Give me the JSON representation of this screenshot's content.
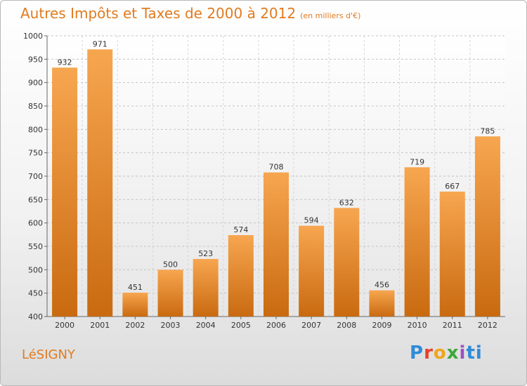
{
  "header": {
    "title": "Autres Impôts et Taxes de 2000 à 2012",
    "subtitle": "(en milliers d'€)"
  },
  "footer": {
    "city": "LéSIGNY",
    "logo": [
      "P",
      "r",
      "o",
      "x",
      "i",
      "ti"
    ]
  },
  "colors": {
    "bar_top": "#f7a650",
    "bar_bottom": "#c96a10",
    "accent": "#e07b1f"
  },
  "chart_data": {
    "type": "bar",
    "title": "Autres Impôts et Taxes de 2000 à 2012",
    "subtitle": "(en milliers d'€)",
    "xlabel": "",
    "ylabel": "",
    "categories": [
      "2000",
      "2001",
      "2002",
      "2003",
      "2004",
      "2005",
      "2006",
      "2007",
      "2008",
      "2009",
      "2010",
      "2011",
      "2012"
    ],
    "values": [
      932,
      971,
      451,
      500,
      523,
      574,
      708,
      594,
      632,
      456,
      719,
      667,
      785
    ],
    "ylim": [
      400,
      1000
    ],
    "yticks": [
      400,
      450,
      500,
      550,
      600,
      650,
      700,
      750,
      800,
      850,
      900,
      950,
      1000
    ],
    "grid": true
  }
}
